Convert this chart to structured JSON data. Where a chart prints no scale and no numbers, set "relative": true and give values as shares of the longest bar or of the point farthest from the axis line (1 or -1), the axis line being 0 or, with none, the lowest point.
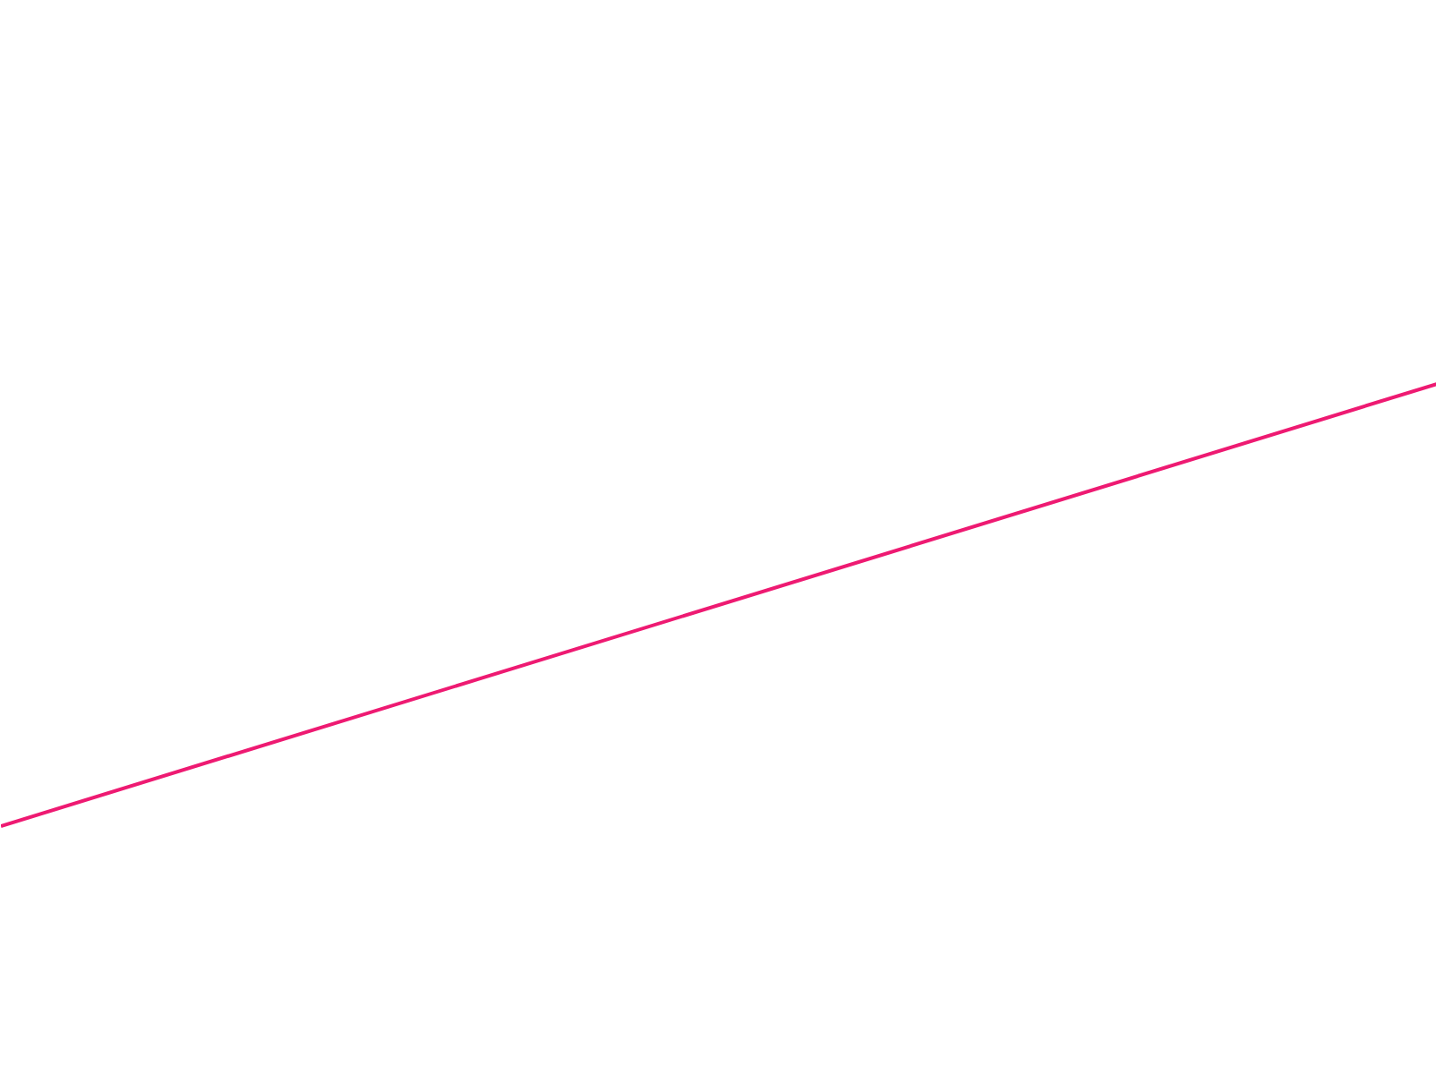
{
  "chart_data": {
    "type": "line",
    "relative": true,
    "categories": [
      null,
      null
    ],
    "series": [
      {
        "color": "#ee1a72",
        "values": [
          0,
          1
        ]
      }
    ]
  }
}
